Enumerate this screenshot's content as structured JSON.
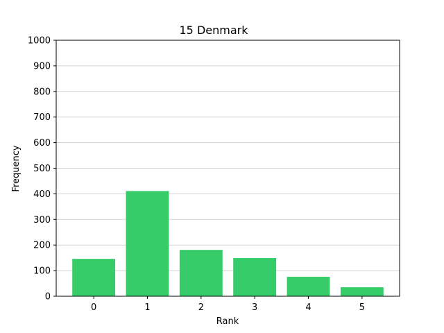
{
  "chart_data": {
    "type": "bar",
    "title": "15 Denmark",
    "xlabel": "Rank",
    "ylabel": "Frequency",
    "categories": [
      "0",
      "1",
      "2",
      "3",
      "4",
      "5"
    ],
    "values": [
      146,
      411,
      181,
      149,
      76,
      35
    ],
    "ylim": [
      0,
      1000
    ],
    "yticks": [
      0,
      100,
      200,
      300,
      400,
      500,
      600,
      700,
      800,
      900,
      1000
    ],
    "grid": "horizontal",
    "bar_color": "#36cc6a",
    "grid_color": "#d3d3d3"
  }
}
